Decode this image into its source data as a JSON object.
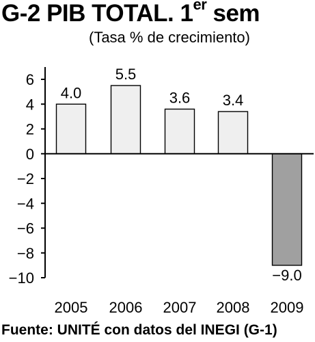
{
  "header": {
    "title_main": "G-2 PIB TOTAL. 1",
    "title_sup": "er",
    "title_tail": " sem",
    "subtitle": "(Tasa % de crecimiento)"
  },
  "source": "Fuente: UNITÉ con datos del INEGI (G-1)",
  "colors": {
    "positive_bar": "#efefef",
    "negative_bar": "#a0a0a0",
    "outline": "#000000"
  },
  "chart_data": {
    "type": "bar",
    "categories": [
      "2005",
      "2006",
      "2007",
      "2008",
      "2009"
    ],
    "values": [
      4.0,
      5.5,
      3.6,
      3.4,
      -9.0
    ],
    "data_labels": [
      "4.0",
      "5.5",
      "3.6",
      "3.4",
      "−9.0"
    ],
    "title": "G-2 PIB TOTAL. 1er sem",
    "subtitle": "(Tasa % de crecimiento)",
    "xlabel": "",
    "ylabel": "",
    "ylim": [
      -10,
      6
    ],
    "yticks": [
      6,
      4,
      2,
      0,
      -2,
      -4,
      -6,
      -8,
      -10
    ],
    "ytick_labels": [
      "6",
      "4",
      "2",
      "0",
      "−2",
      "−4",
      "−6",
      "−8",
      "−10"
    ],
    "grid": false,
    "legend": "none"
  }
}
